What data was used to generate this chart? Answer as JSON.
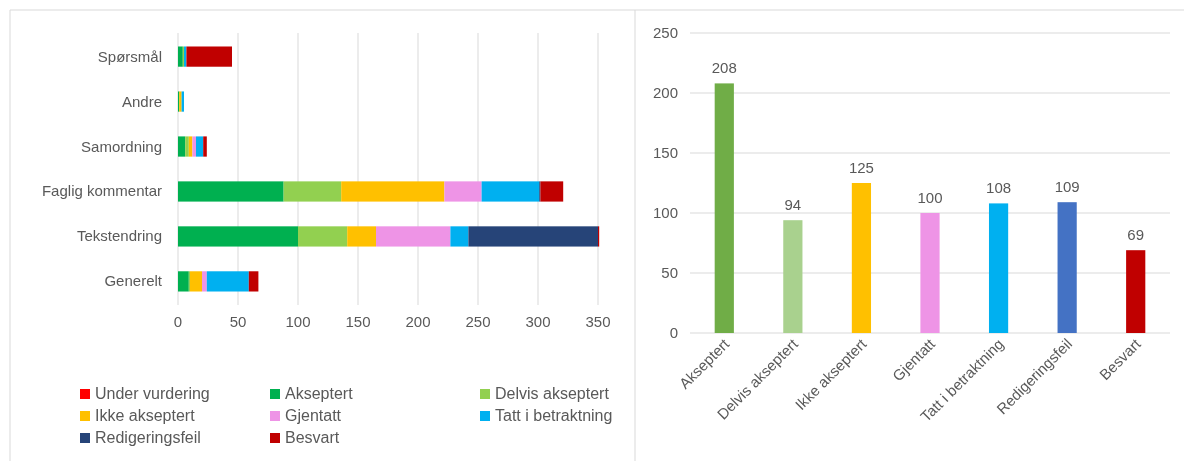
{
  "chart_data": [
    {
      "type": "bar",
      "orientation": "horizontal",
      "stacked": true,
      "categories": [
        "Spørsmål",
        "Andre",
        "Samordning",
        "Faglig kommentar",
        "Tekstendring",
        "Generelt"
      ],
      "xlim": [
        0,
        350
      ],
      "xticks": [
        0,
        50,
        100,
        150,
        200,
        250,
        300,
        350
      ],
      "grid": "x",
      "legend": "bottom",
      "series": [
        {
          "name": "Under vurdering",
          "color": "#ff0000",
          "values": [
            0,
            0,
            0,
            0,
            0,
            0
          ]
        },
        {
          "name": "Akseptert",
          "color": "#00b050",
          "values": [
            4,
            1,
            6,
            88,
            100,
            9
          ]
        },
        {
          "name": "Delvis akseptert",
          "color": "#92d050",
          "values": [
            1,
            0,
            3,
            48,
            41,
            1
          ]
        },
        {
          "name": "Ikke akseptert",
          "color": "#ffc000",
          "values": [
            0,
            2,
            3,
            86,
            24,
            10
          ]
        },
        {
          "name": "Gjentatt",
          "color": "#ee94e6",
          "values": [
            0,
            0,
            3,
            31,
            62,
            4
          ]
        },
        {
          "name": "Tatt i betraktning",
          "color": "#00b0f0",
          "values": [
            2,
            2,
            6,
            48,
            15,
            35
          ]
        },
        {
          "name": "Redigeringsfeil",
          "color": "#264478",
          "values": [
            0,
            0,
            0,
            1,
            108,
            0
          ]
        },
        {
          "name": "Besvart",
          "color": "#c00000",
          "values": [
            38,
            0,
            3,
            19,
            1,
            8
          ]
        }
      ]
    },
    {
      "type": "bar",
      "categories": [
        "Akseptert",
        "Delvis akseptert",
        "Ikke akseptert",
        "Gjentatt",
        "Tatt i betraktning",
        "Redigeringsfeil",
        "Besvart"
      ],
      "values": [
        208,
        94,
        125,
        100,
        108,
        109,
        69
      ],
      "colors": [
        "#70ad47",
        "#a9d18e",
        "#ffc000",
        "#ee94e6",
        "#00b0f0",
        "#4472c4",
        "#c00000"
      ],
      "ylim": [
        0,
        250
      ],
      "yticks": [
        0,
        50,
        100,
        150,
        200,
        250
      ],
      "grid": "y",
      "data_labels": true
    }
  ]
}
